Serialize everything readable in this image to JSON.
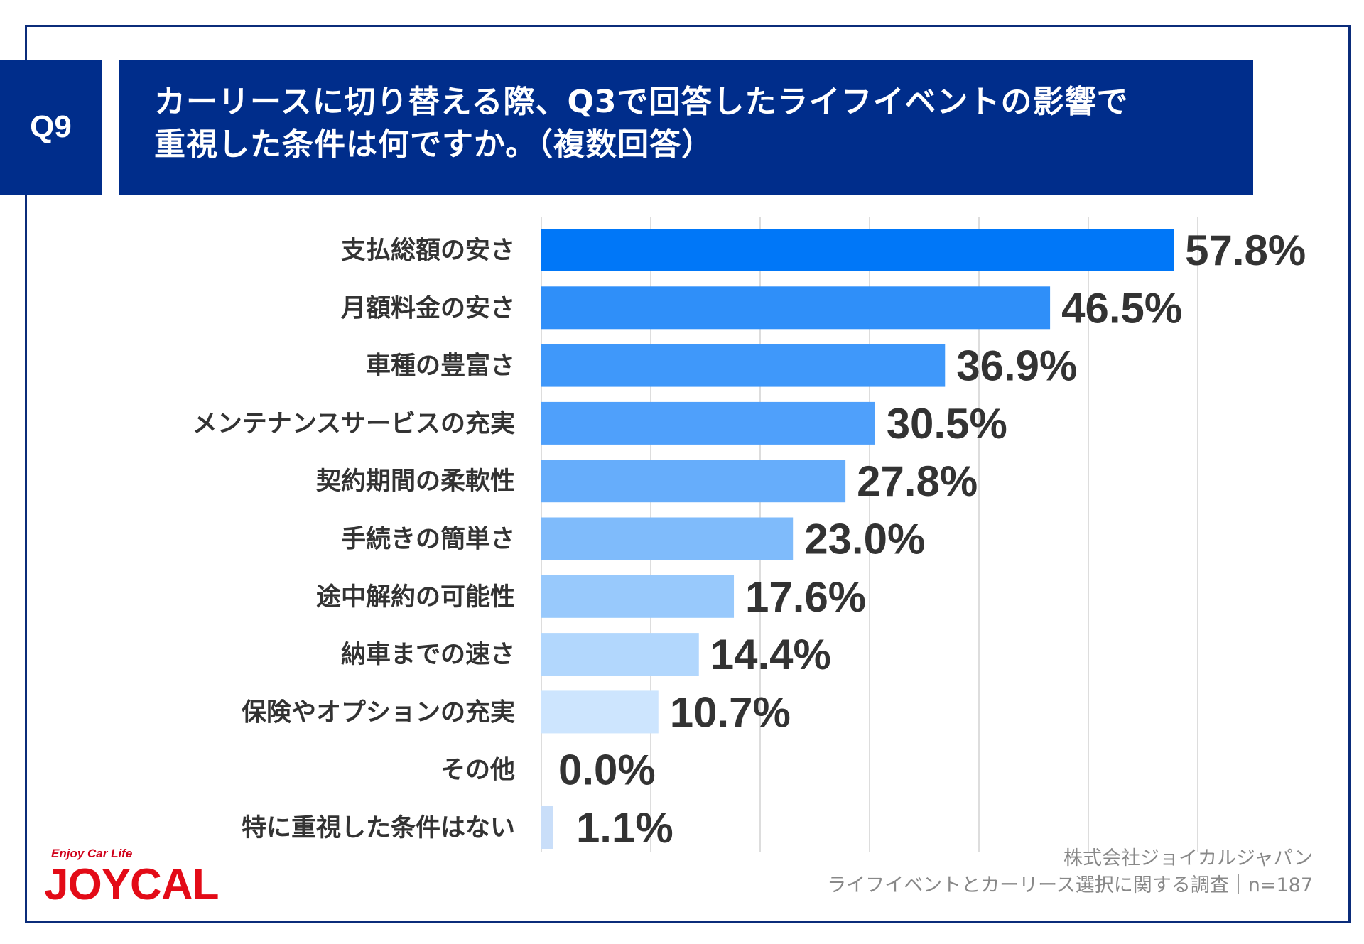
{
  "question": {
    "badge": "Q9",
    "line1": "カーリースに切り替える際、Q3で回答したライフイベントの影響で",
    "line2": "重視した条件は何ですか。（複数回答）"
  },
  "chart_data": {
    "type": "bar",
    "orientation": "horizontal",
    "categories": [
      "支払総額の安さ",
      "月額料金の安さ",
      "車種の豊富さ",
      "メンテナンスサービスの充実",
      "契約期間の柔軟性",
      "手続きの簡単さ",
      "途中解約の可能性",
      "納車までの速さ",
      "保険やオプションの充実",
      "その他",
      "特に重視した条件はない"
    ],
    "values": [
      57.8,
      46.5,
      36.9,
      30.5,
      27.8,
      23.0,
      17.6,
      14.4,
      10.7,
      0.0,
      1.1
    ],
    "value_labels": [
      "57.8%",
      "46.5%",
      "36.9%",
      "30.5%",
      "27.8%",
      "23.0%",
      "17.6%",
      "14.4%",
      "10.7%",
      "0.0%",
      "1.1%"
    ],
    "xlim": [
      0,
      60
    ],
    "grid": true,
    "bar_colors": [
      "#0077f8",
      "#2f8ff9",
      "#3f98fa",
      "#4fa0fb",
      "#66adfb",
      "#7fbbfb",
      "#98c9fc",
      "#b2d7fd",
      "#cde5fe",
      "#dbe9fb",
      "#c9def9"
    ]
  },
  "source": {
    "line1": "株式会社ジョイカルジャパン",
    "line2": "ライフイベントとカーリース選択に関する調査｜n=187"
  },
  "logo": {
    "tagline": "Enjoy Car Life",
    "wordmark": "JOYCAL"
  }
}
